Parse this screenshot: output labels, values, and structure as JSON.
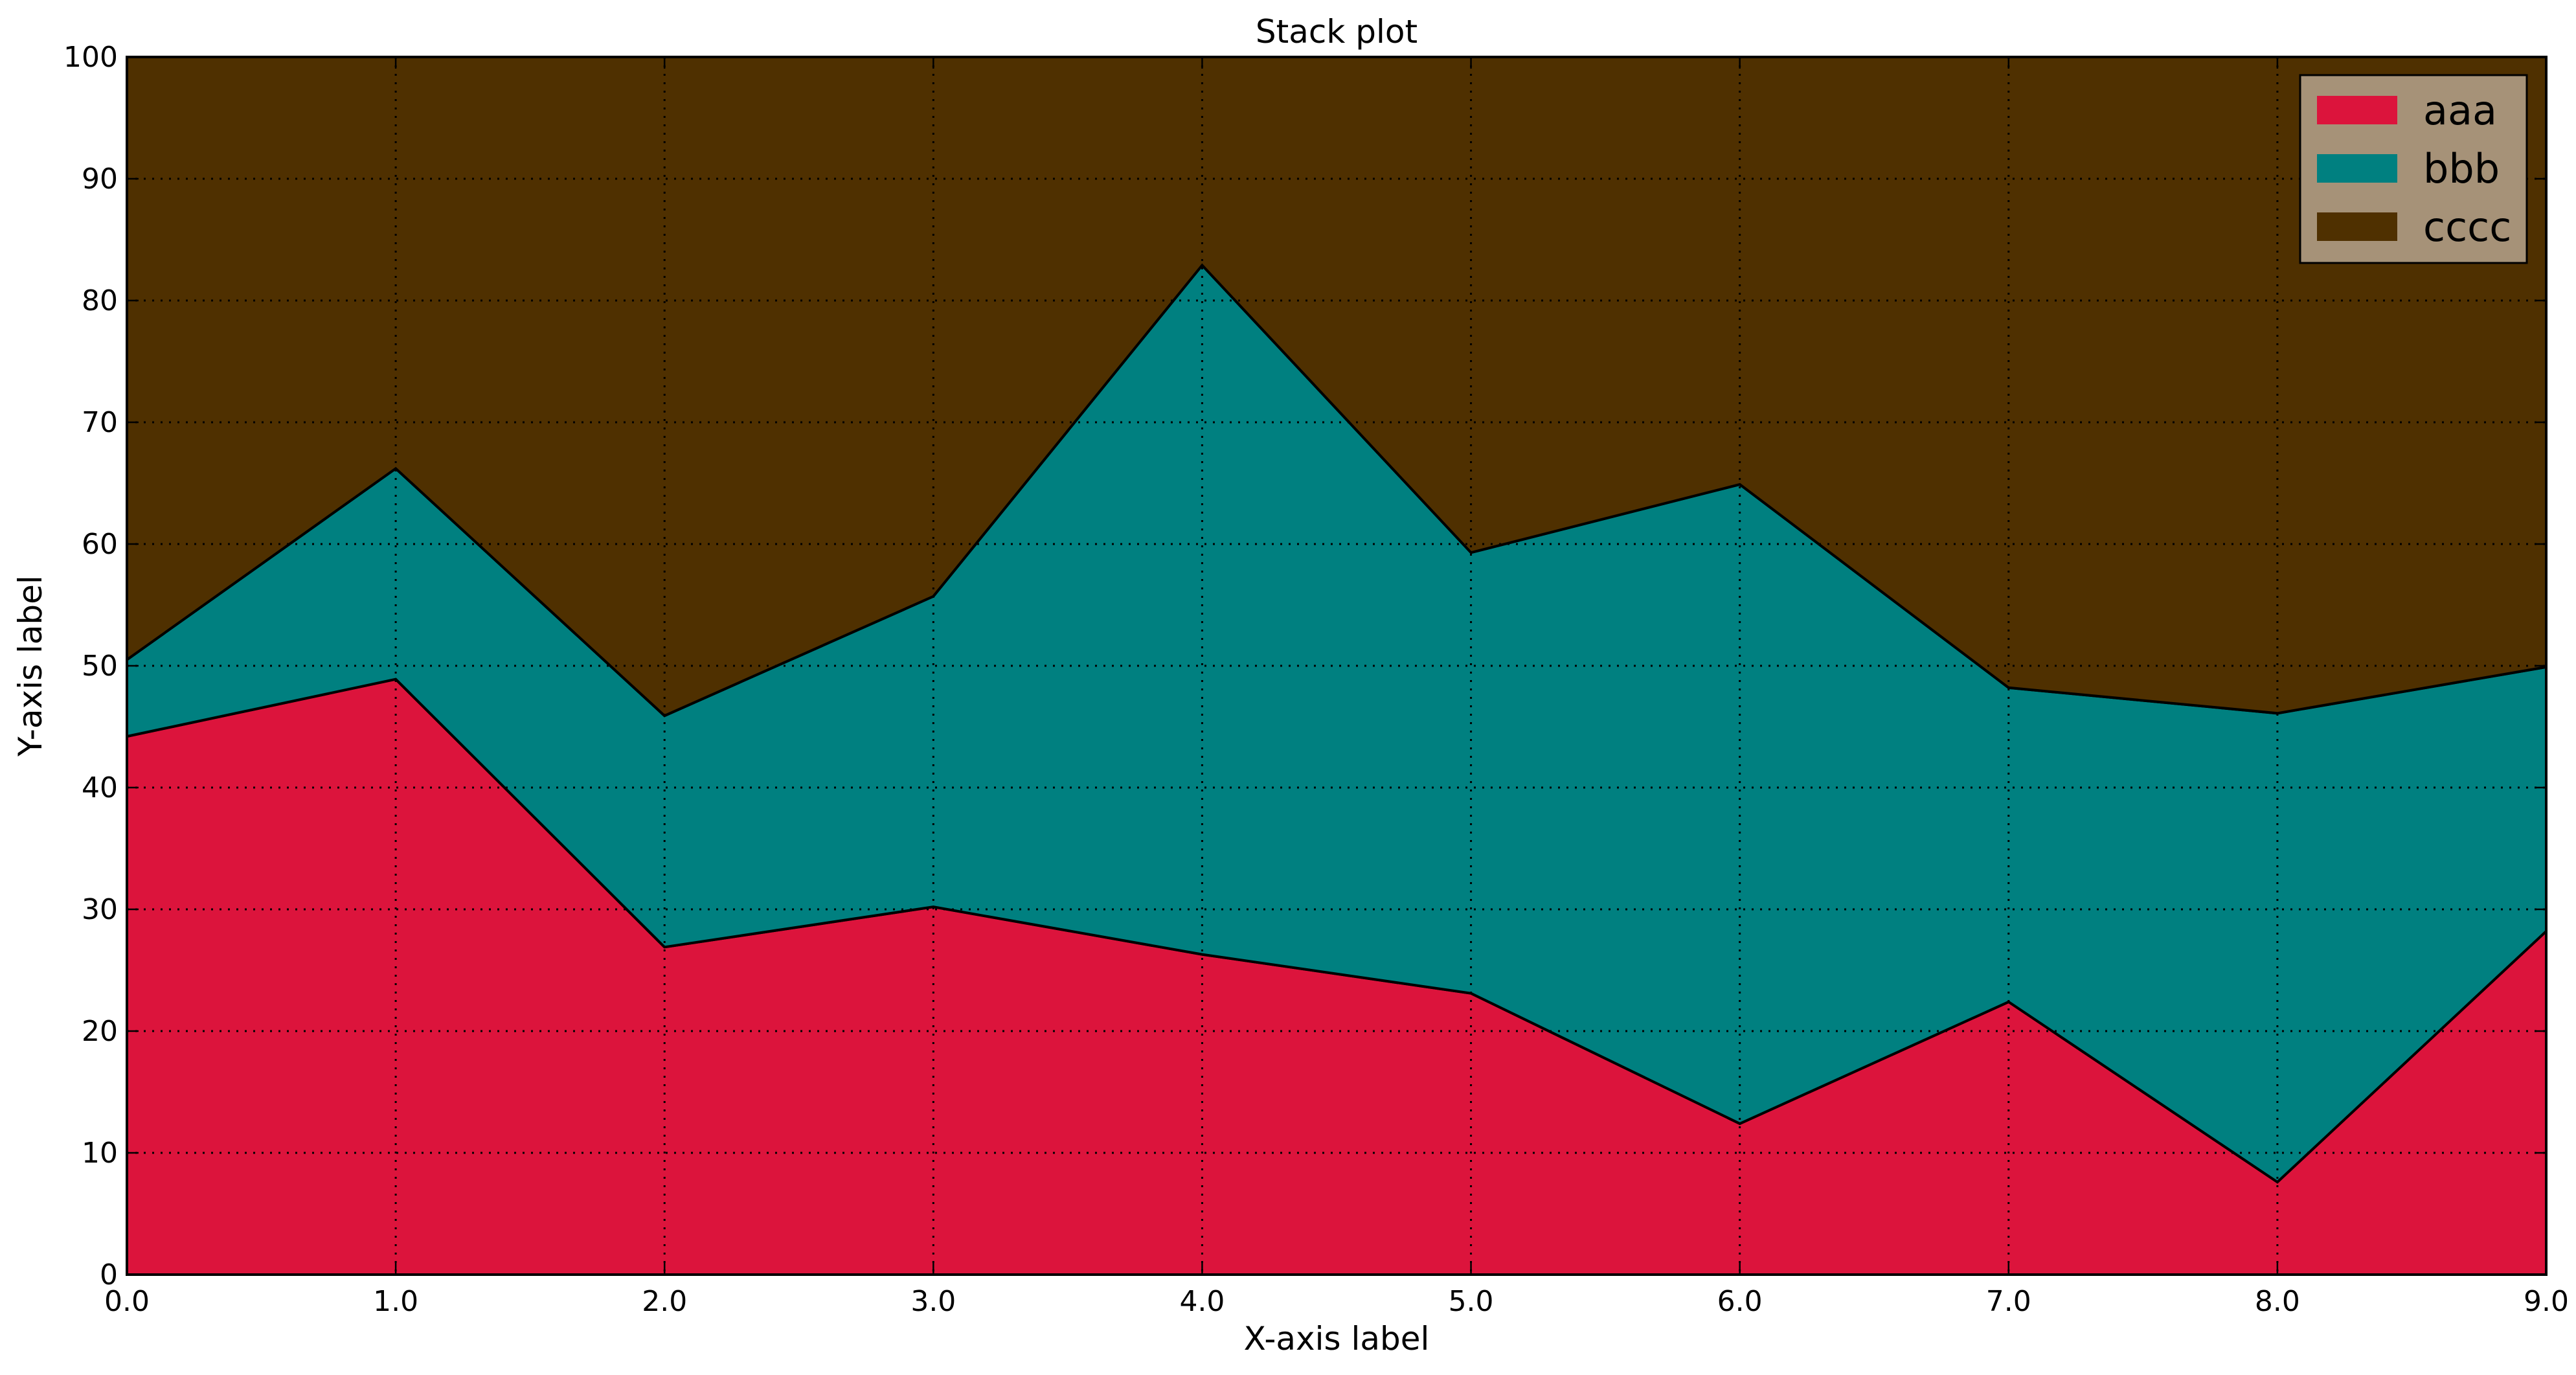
{
  "chart_data": {
    "type": "area",
    "stacked": true,
    "title": "Stack plot",
    "xlabel": "X-axis label",
    "ylabel": "Y-axis label",
    "x": [
      0,
      1,
      2,
      3,
      4,
      5,
      6,
      7,
      8,
      9
    ],
    "xticks": [
      "0.0",
      "1.0",
      "2.0",
      "3.0",
      "4.0",
      "5.0",
      "6.0",
      "7.0",
      "8.0",
      "9.0"
    ],
    "yticks": [
      "0",
      "10",
      "20",
      "30",
      "40",
      "50",
      "60",
      "70",
      "80",
      "90",
      "100"
    ],
    "xlim": [
      0,
      9
    ],
    "ylim": [
      0,
      100
    ],
    "grid": true,
    "legend_position": "top-right",
    "series": [
      {
        "name": "aaa",
        "color": "#dc143c",
        "values": [
          44.2,
          48.9,
          26.9,
          30.2,
          26.3,
          23.1,
          12.4,
          22.4,
          7.6,
          28.2
        ]
      },
      {
        "name": "bbb",
        "color": "#008080",
        "values": [
          6.3,
          17.3,
          19.0,
          25.5,
          56.6,
          36.2,
          52.5,
          25.8,
          38.5,
          21.7
        ]
      },
      {
        "name": "cccc",
        "color": "#4f3000",
        "values": [
          49.5,
          33.8,
          54.1,
          44.3,
          17.1,
          40.7,
          35.1,
          51.8,
          53.9,
          50.1
        ]
      }
    ],
    "legend_background": "#a69278"
  }
}
